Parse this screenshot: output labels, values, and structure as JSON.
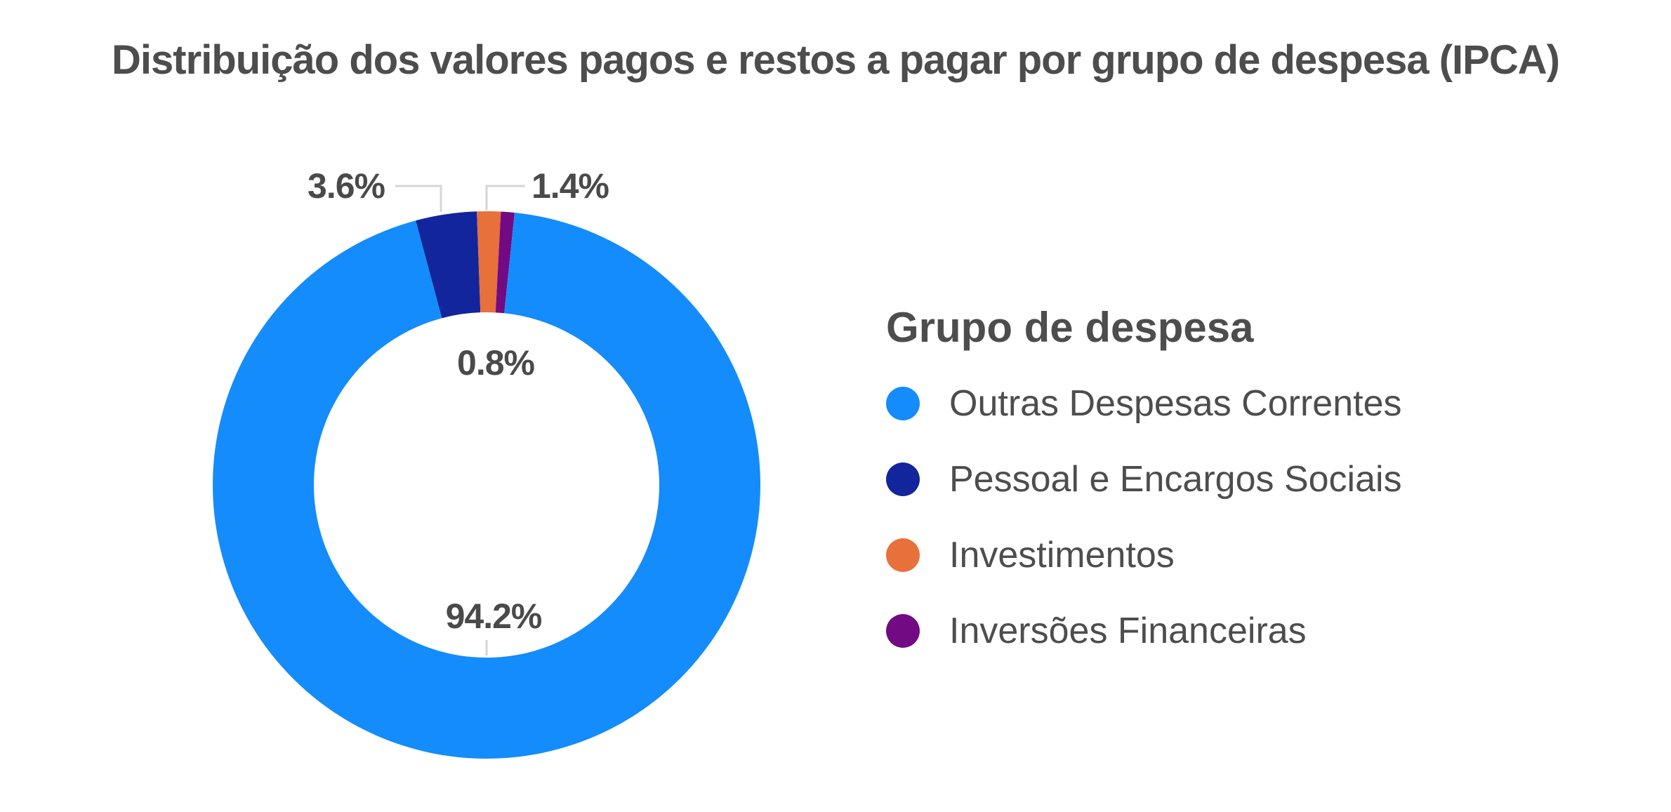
{
  "chart_data": {
    "type": "pie",
    "title": "Distribuição dos valores pagos e restos a pagar por grupo de despesa (IPCA)",
    "legend_title": "Grupo de despesa",
    "legend_position": "right",
    "categories": [
      "Outras Despesas Correntes",
      "Pessoal e Encargos Sociais",
      "Investimentos",
      "Inversões Financeiras"
    ],
    "values": [
      94.2,
      3.6,
      1.4,
      0.8
    ],
    "value_labels": [
      "94.2%",
      "3.6%",
      "1.4%",
      "0.8%"
    ],
    "unit": "%",
    "colors": [
      "#148cfb",
      "#13259c",
      "#e8703a",
      "#720a84"
    ],
    "donut": true
  }
}
